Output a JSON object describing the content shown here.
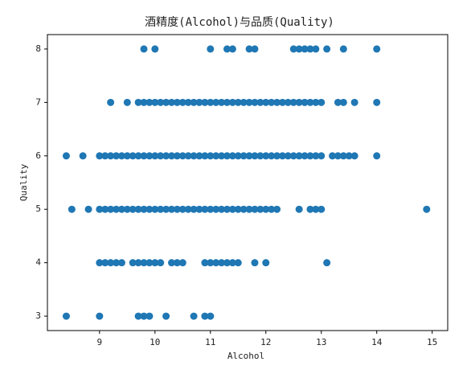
{
  "chart_data": {
    "type": "scatter",
    "title": "酒精度(Alcohol)与品质(Quality)",
    "xlabel": "Alcohol",
    "ylabel": "Quality",
    "color": "#1f77b4",
    "xlim": [
      8.06,
      15.28
    ],
    "ylim": [
      2.73,
      8.27
    ],
    "xticks": [
      9,
      10,
      11,
      12,
      13,
      14,
      15
    ],
    "yticks": [
      3,
      4,
      5,
      6,
      7,
      8
    ],
    "x": [
      9.8,
      10.0,
      11.0,
      11.3,
      11.4,
      11.7,
      11.8,
      12.5,
      12.6,
      12.7,
      12.8,
      12.9,
      13.1,
      13.4,
      14.0,
      9.2,
      9.5,
      9.7,
      9.8,
      9.9,
      10.0,
      10.1,
      10.2,
      10.3,
      10.4,
      10.5,
      10.6,
      10.7,
      10.8,
      10.9,
      11.0,
      11.1,
      11.2,
      11.3,
      11.4,
      11.5,
      11.6,
      11.7,
      11.8,
      11.9,
      12.0,
      12.1,
      12.2,
      12.3,
      12.4,
      12.5,
      12.6,
      12.7,
      12.8,
      12.9,
      13.0,
      13.3,
      13.4,
      13.6,
      14.0,
      8.4,
      8.7,
      9.0,
      9.1,
      9.2,
      9.3,
      9.4,
      9.5,
      9.6,
      9.7,
      9.8,
      9.9,
      10.0,
      10.1,
      10.2,
      10.3,
      10.4,
      10.5,
      10.6,
      10.7,
      10.8,
      10.9,
      11.0,
      11.1,
      11.2,
      11.3,
      11.4,
      11.5,
      11.6,
      11.7,
      11.8,
      11.9,
      12.0,
      12.1,
      12.2,
      12.3,
      12.4,
      12.5,
      12.6,
      12.7,
      12.8,
      12.9,
      13.0,
      13.2,
      13.3,
      13.4,
      13.5,
      13.6,
      14.0,
      8.5,
      8.8,
      9.0,
      9.1,
      9.2,
      9.3,
      9.4,
      9.5,
      9.6,
      9.7,
      9.8,
      9.9,
      10.0,
      10.1,
      10.2,
      10.3,
      10.4,
      10.5,
      10.6,
      10.7,
      10.8,
      10.9,
      11.0,
      11.1,
      11.2,
      11.3,
      11.4,
      11.5,
      11.6,
      11.7,
      11.8,
      11.9,
      12.0,
      12.1,
      12.2,
      12.6,
      12.8,
      12.9,
      13.0,
      14.9,
      9.0,
      9.1,
      9.2,
      9.3,
      9.4,
      9.6,
      9.7,
      9.8,
      9.9,
      10.0,
      10.1,
      10.3,
      10.4,
      10.5,
      10.9,
      11.0,
      11.1,
      11.2,
      11.3,
      11.4,
      11.5,
      11.8,
      12.0,
      13.1,
      8.4,
      9.0,
      9.7,
      9.8,
      9.9,
      10.2,
      10.7,
      10.9,
      11.0
    ],
    "y": [
      8,
      8,
      8,
      8,
      8,
      8,
      8,
      8,
      8,
      8,
      8,
      8,
      8,
      8,
      8,
      7,
      7,
      7,
      7,
      7,
      7,
      7,
      7,
      7,
      7,
      7,
      7,
      7,
      7,
      7,
      7,
      7,
      7,
      7,
      7,
      7,
      7,
      7,
      7,
      7,
      7,
      7,
      7,
      7,
      7,
      7,
      7,
      7,
      7,
      7,
      7,
      7,
      7,
      7,
      7,
      6,
      6,
      6,
      6,
      6,
      6,
      6,
      6,
      6,
      6,
      6,
      6,
      6,
      6,
      6,
      6,
      6,
      6,
      6,
      6,
      6,
      6,
      6,
      6,
      6,
      6,
      6,
      6,
      6,
      6,
      6,
      6,
      6,
      6,
      6,
      6,
      6,
      6,
      6,
      6,
      6,
      6,
      6,
      6,
      6,
      6,
      6,
      6,
      6,
      5,
      5,
      5,
      5,
      5,
      5,
      5,
      5,
      5,
      5,
      5,
      5,
      5,
      5,
      5,
      5,
      5,
      5,
      5,
      5,
      5,
      5,
      5,
      5,
      5,
      5,
      5,
      5,
      5,
      5,
      5,
      5,
      5,
      5,
      5,
      5,
      5,
      5,
      5,
      5,
      4,
      4,
      4,
      4,
      4,
      4,
      4,
      4,
      4,
      4,
      4,
      4,
      4,
      4,
      4,
      4,
      4,
      4,
      4,
      4,
      4,
      4,
      4,
      4,
      3,
      3,
      3,
      3,
      3,
      3,
      3,
      3,
      3
    ]
  }
}
